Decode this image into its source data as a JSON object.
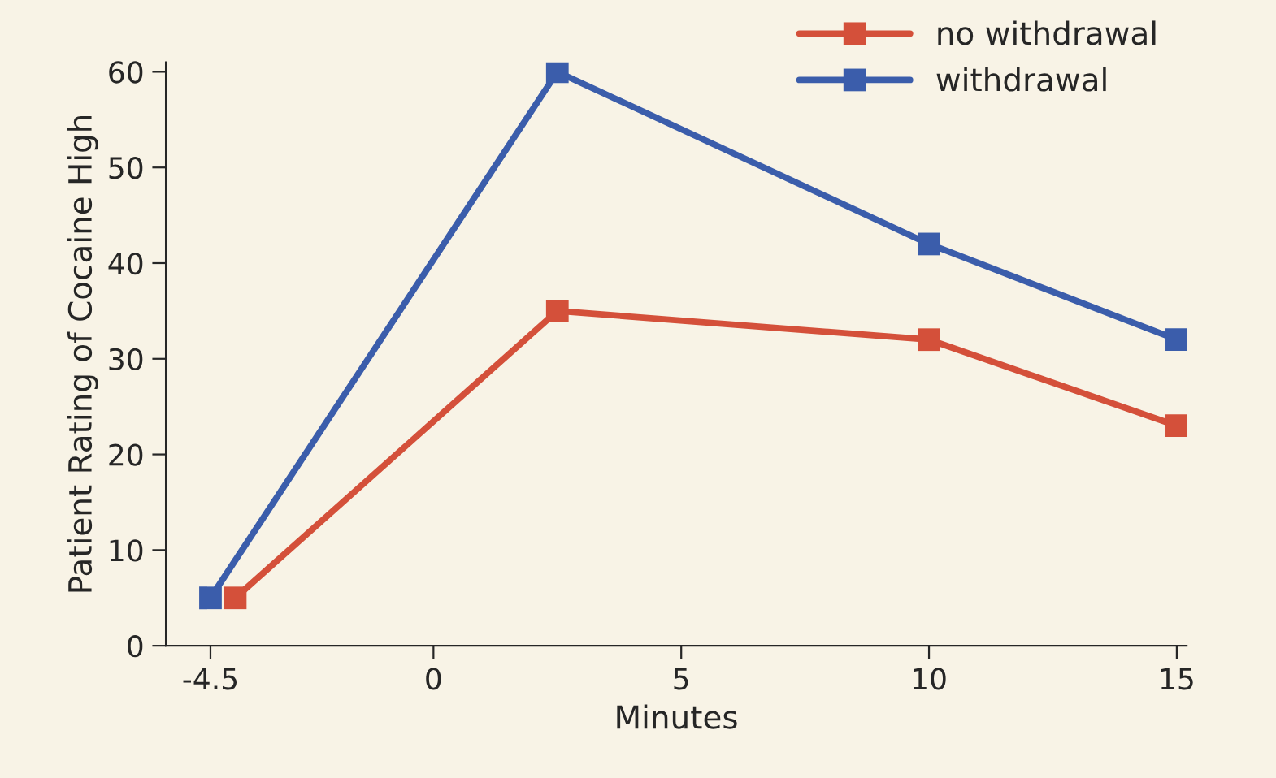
{
  "chart_data": {
    "type": "line",
    "xlabel": "Minutes",
    "ylabel": "Patient Rating of Cocaine High",
    "series": [
      {
        "name": "no withdrawal",
        "color": "#d4503a",
        "x": [
          -4,
          2.5,
          10,
          15
        ],
        "values": [
          5,
          35,
          32,
          23
        ]
      },
      {
        "name": "withdrawal",
        "color": "#3b5dab",
        "x": [
          -4.5,
          2.5,
          10,
          15
        ],
        "values": [
          5,
          60,
          42,
          32
        ]
      }
    ],
    "xlim": [
      -5.4,
      15.2
    ],
    "xticks": [
      -4.5,
      0,
      5,
      10,
      15
    ],
    "ylim": [
      0,
      61
    ],
    "yticks": [
      0,
      10,
      20,
      30,
      40,
      50,
      60
    ],
    "grid": false,
    "legend": "top right",
    "marker": "square",
    "line_style": "solid"
  }
}
